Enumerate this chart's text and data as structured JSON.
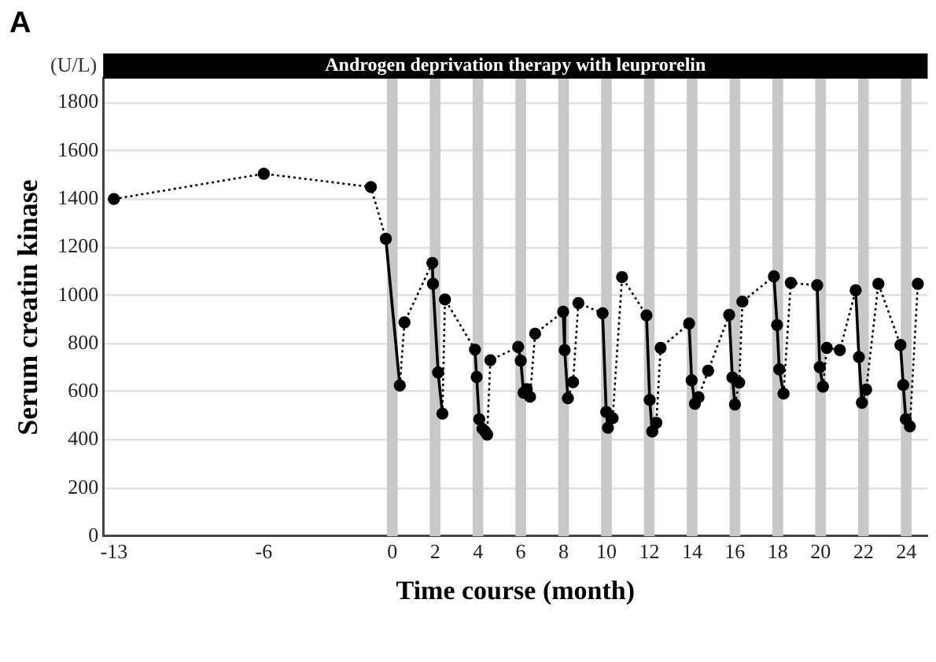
{
  "chart_data": {
    "type": "line",
    "xlabel": "Time course (month)",
    "ylabel": "Serum creatin kinase",
    "annotations": [
      "A",
      "(U/L)",
      "Androgen deprivation therapy with leuprorelin"
    ],
    "x": [
      -13,
      -6,
      -1,
      -0.3,
      0.35,
      0.57,
      1.87,
      1.9,
      2.14,
      2.34,
      2.46,
      3.86,
      3.94,
      4.06,
      4.21,
      4.33,
      4.43,
      4.58,
      5.88,
      6.0,
      6.13,
      6.28,
      6.43,
      6.67,
      7.98,
      8.05,
      8.2,
      8.44,
      8.69,
      9.82,
      9.99,
      10.07,
      10.29,
      10.73,
      11.87,
      12.02,
      12.14,
      12.33,
      12.53,
      13.86,
      13.98,
      14.13,
      14.3,
      14.75,
      15.73,
      15.88,
      16.0,
      16.2,
      16.35,
      17.82,
      17.97,
      18.07,
      18.27,
      18.61,
      19.84,
      19.96,
      20.11,
      20.29,
      20.9,
      21.64,
      21.79,
      21.93,
      22.13,
      22.7,
      23.73,
      23.86,
      23.98,
      24.17,
      24.54
    ],
    "series": [
      {
        "color": "#000000",
        "marker": "circle",
        "values": [
          1400,
          1505,
          1450,
          1235,
          626,
          888,
          1135,
          1048,
          680,
          509,
          983,
          775,
          661,
          486,
          446,
          435,
          422,
          731,
          786,
          729,
          596,
          611,
          579,
          841,
          932,
          773,
          573,
          640,
          968,
          926,
          516,
          450,
          490,
          1076,
          917,
          566,
          435,
          471,
          782,
          883,
          647,
          550,
          577,
          687,
          919,
          659,
          547,
          638,
          974,
          1079,
          877,
          693,
          592,
          1052,
          1042,
          702,
          621,
          782,
          773,
          1021,
          744,
          554,
          609,
          1048,
          794,
          628,
          486,
          456,
          1048
        ],
        "line_style": [
          "dotted",
          "dotted",
          "dotted",
          "solid",
          "dotted",
          "dotted",
          "solid",
          "solid",
          "solid",
          "dotted",
          "dotted",
          "solid",
          "solid",
          "solid",
          "solid",
          "solid",
          "dotted",
          "dotted",
          "solid",
          "solid",
          "solid",
          "solid",
          "dotted",
          "dotted",
          "solid",
          "solid",
          "dotted",
          "dotted",
          "dotted",
          "solid",
          "solid",
          "dotted",
          "dotted",
          "dotted",
          "solid",
          "solid",
          "dotted",
          "dotted",
          "dotted",
          "solid",
          "solid",
          "dotted",
          "dotted",
          "dotted",
          "solid",
          "solid",
          "dotted",
          "dotted",
          "dotted",
          "solid",
          "solid",
          "solid",
          "dotted",
          "dotted",
          "solid",
          "solid",
          "dotted",
          "dotted",
          "dotted",
          "solid",
          "solid",
          "dotted",
          "dotted",
          "dotted",
          "solid",
          "solid",
          "solid",
          "dotted"
        ]
      }
    ],
    "bands": [
      {
        "axis": "x",
        "from": -0.25,
        "to": 0.25,
        "color": "#c8c8c8"
      },
      {
        "axis": "x",
        "from": 1.75,
        "to": 2.25,
        "color": "#c8c8c8"
      },
      {
        "axis": "x",
        "from": 3.75,
        "to": 4.25,
        "color": "#c8c8c8"
      },
      {
        "axis": "x",
        "from": 5.75,
        "to": 6.25,
        "color": "#c8c8c8"
      },
      {
        "axis": "x",
        "from": 7.75,
        "to": 8.25,
        "color": "#c8c8c8"
      },
      {
        "axis": "x",
        "from": 9.75,
        "to": 10.25,
        "color": "#c8c8c8"
      },
      {
        "axis": "x",
        "from": 11.75,
        "to": 12.25,
        "color": "#c8c8c8"
      },
      {
        "axis": "x",
        "from": 13.75,
        "to": 14.25,
        "color": "#c8c8c8"
      },
      {
        "axis": "x",
        "from": 15.75,
        "to": 16.25,
        "color": "#c8c8c8"
      },
      {
        "axis": "x",
        "from": 17.75,
        "to": 18.25,
        "color": "#c8c8c8"
      },
      {
        "axis": "x",
        "from": 19.75,
        "to": 20.25,
        "color": "#c8c8c8"
      },
      {
        "axis": "x",
        "from": 21.75,
        "to": 22.25,
        "color": "#c8c8c8"
      },
      {
        "axis": "x",
        "from": 23.75,
        "to": 24.25,
        "color": "#c8c8c8"
      }
    ],
    "xlim": [
      -13.5,
      25
    ],
    "xticks": [
      -13,
      -6,
      0,
      2,
      4,
      6,
      8,
      10,
      12,
      14,
      16,
      18,
      20,
      22,
      24
    ],
    "ylim": [
      0,
      1900
    ],
    "yticks": [
      0,
      200,
      400,
      600,
      800,
      1000,
      1200,
      1400,
      1600,
      1800
    ],
    "grid": "y",
    "legend": false
  }
}
